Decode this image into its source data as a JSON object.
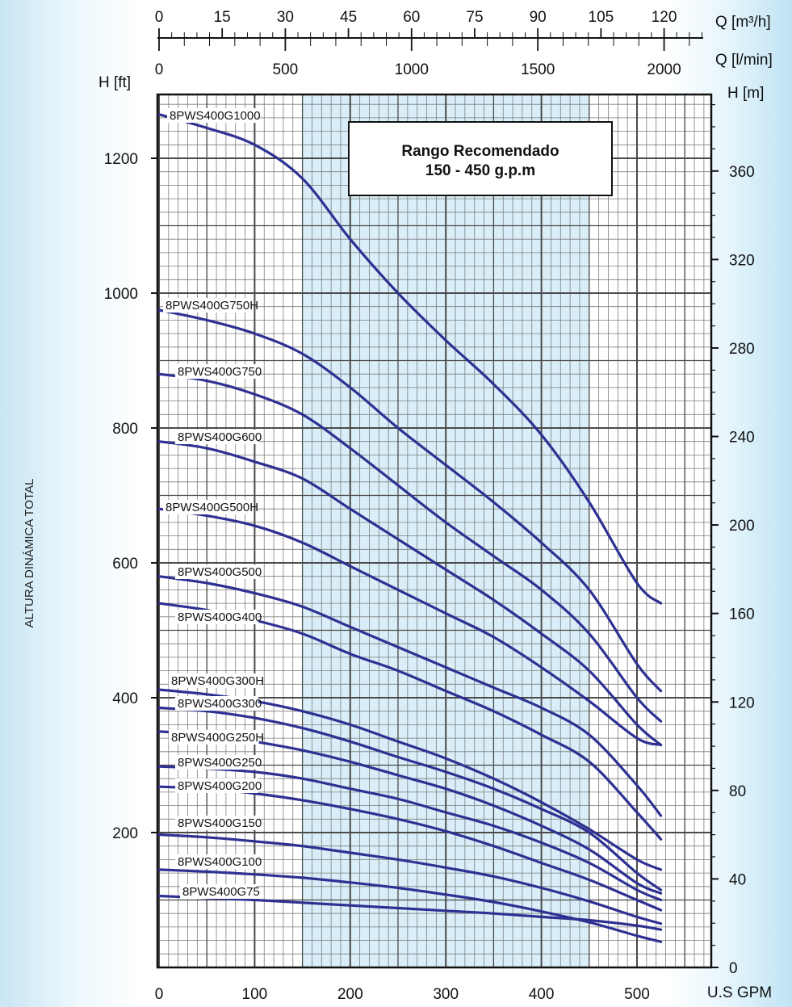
{
  "chart_data": {
    "type": "line",
    "ylabel_vertical": "ALTURA DINÁMICA TOTAL",
    "x_axis_bottom": {
      "label": "U.S GPM",
      "range": [
        0,
        580
      ],
      "ticks": [
        "0",
        "100",
        "200",
        "300",
        "400",
        "500"
      ]
    },
    "x_axis_top_m3h": {
      "label": "Q [m³/h]",
      "ticks": [
        "0",
        "15",
        "30",
        "45",
        "60",
        "75",
        "90",
        "105",
        "120"
      ]
    },
    "x_axis_top_lmin": {
      "label": "Q [l/min]",
      "ticks": [
        "0",
        "500",
        "1000",
        "1500",
        "2000"
      ]
    },
    "y_axis_left_ft": {
      "label": "H [ft]",
      "range": [
        0,
        1300
      ],
      "ticks": [
        "200",
        "400",
        "600",
        "800",
        "1000",
        "1200"
      ]
    },
    "y_axis_right_m": {
      "label": "H [m]",
      "ticks": [
        "0",
        "40",
        "80",
        "120",
        "160",
        "200",
        "240",
        "280",
        "320",
        "360"
      ]
    },
    "recommended_range": {
      "title": "Rango Recomendado",
      "subtitle": "150 - 450 g.p.m",
      "x_from": 150,
      "x_to": 450
    },
    "grid": true,
    "line_color": "#2e3192",
    "shade_color": "#d9eef8",
    "series": [
      {
        "name": "8PWS400G1000",
        "x": [
          0,
          50,
          100,
          150,
          200,
          250,
          300,
          350,
          400,
          450,
          500,
          525
        ],
        "y": [
          1265,
          1245,
          1220,
          1170,
          1080,
          1000,
          930,
          865,
          790,
          690,
          570,
          540
        ]
      },
      {
        "name": "8PWS400G750H",
        "x": [
          0,
          50,
          100,
          150,
          200,
          250,
          300,
          350,
          400,
          450,
          500,
          525
        ],
        "y": [
          975,
          960,
          940,
          910,
          860,
          800,
          745,
          690,
          630,
          560,
          450,
          410
        ]
      },
      {
        "name": "8PWS400G750",
        "x": [
          0,
          50,
          100,
          150,
          200,
          250,
          300,
          350,
          400,
          450,
          500,
          525
        ],
        "y": [
          880,
          870,
          850,
          820,
          770,
          715,
          660,
          610,
          560,
          495,
          400,
          365
        ]
      },
      {
        "name": "8PWS400G600",
        "x": [
          0,
          50,
          100,
          150,
          200,
          250,
          300,
          350,
          400,
          450,
          500,
          525
        ],
        "y": [
          780,
          770,
          750,
          725,
          680,
          635,
          590,
          545,
          495,
          440,
          360,
          330
        ]
      },
      {
        "name": "8PWS400G500H",
        "x": [
          0,
          50,
          100,
          150,
          200,
          250,
          300,
          350,
          400,
          450,
          500,
          525
        ],
        "y": [
          680,
          670,
          655,
          630,
          595,
          560,
          525,
          490,
          445,
          395,
          340,
          330
        ]
      },
      {
        "name": "8PWS400G500",
        "x": [
          0,
          50,
          100,
          150,
          200,
          250,
          300,
          350,
          400,
          450,
          500,
          525
        ],
        "y": [
          580,
          570,
          555,
          535,
          505,
          475,
          445,
          415,
          385,
          345,
          270,
          225
        ]
      },
      {
        "name": "8PWS400G400",
        "x": [
          0,
          50,
          100,
          150,
          200,
          250,
          300,
          350,
          400,
          450,
          500,
          525
        ],
        "y": [
          540,
          530,
          515,
          495,
          465,
          440,
          410,
          380,
          345,
          305,
          230,
          190
        ]
      },
      {
        "name": "8PWS400G300H",
        "x": [
          0,
          50,
          100,
          150,
          200,
          250,
          300,
          350,
          400,
          450,
          500,
          525
        ],
        "y": [
          412,
          405,
          395,
          380,
          360,
          335,
          310,
          280,
          245,
          205,
          160,
          145
        ]
      },
      {
        "name": "8PWS400G300",
        "x": [
          0,
          50,
          100,
          150,
          200,
          250,
          300,
          350,
          400,
          450,
          500,
          525
        ],
        "y": [
          385,
          380,
          370,
          355,
          335,
          312,
          290,
          265,
          235,
          200,
          140,
          115
        ]
      },
      {
        "name": "8PWS400G250H",
        "x": [
          0,
          50,
          100,
          150,
          200,
          250,
          300,
          350,
          400,
          450,
          500,
          525
        ],
        "y": [
          350,
          345,
          335,
          322,
          305,
          285,
          265,
          240,
          210,
          175,
          125,
          110
        ]
      },
      {
        "name": "8PWS400G250",
        "x": [
          0,
          50,
          100,
          150,
          200,
          250,
          300,
          350,
          400,
          450,
          500,
          525
        ],
        "y": [
          298,
          295,
          290,
          280,
          265,
          250,
          230,
          210,
          185,
          155,
          115,
          100
        ]
      },
      {
        "name": "8PWS400G200",
        "x": [
          0,
          50,
          100,
          150,
          200,
          250,
          300,
          350,
          400,
          450,
          500,
          525
        ],
        "y": [
          268,
          265,
          258,
          248,
          235,
          220,
          202,
          180,
          155,
          130,
          100,
          85
        ]
      },
      {
        "name": "8PWS400G150",
        "x": [
          0,
          50,
          100,
          150,
          200,
          250,
          300,
          350,
          400,
          450,
          500,
          525
        ],
        "y": [
          197,
          193,
          187,
          180,
          170,
          160,
          148,
          135,
          118,
          98,
          75,
          65
        ]
      },
      {
        "name": "8PWS400G100",
        "x": [
          0,
          50,
          100,
          150,
          200,
          250,
          300,
          350,
          400,
          450,
          500,
          525
        ],
        "y": [
          145,
          142,
          138,
          133,
          126,
          118,
          108,
          97,
          83,
          67,
          47,
          38
        ]
      },
      {
        "name": "8PWS400G75",
        "x": [
          0,
          50,
          100,
          150,
          200,
          250,
          300,
          350,
          400,
          450,
          500,
          525
        ],
        "y": [
          106,
          103,
          100,
          96,
          92,
          88,
          84,
          80,
          75,
          70,
          62,
          56
        ]
      }
    ]
  }
}
